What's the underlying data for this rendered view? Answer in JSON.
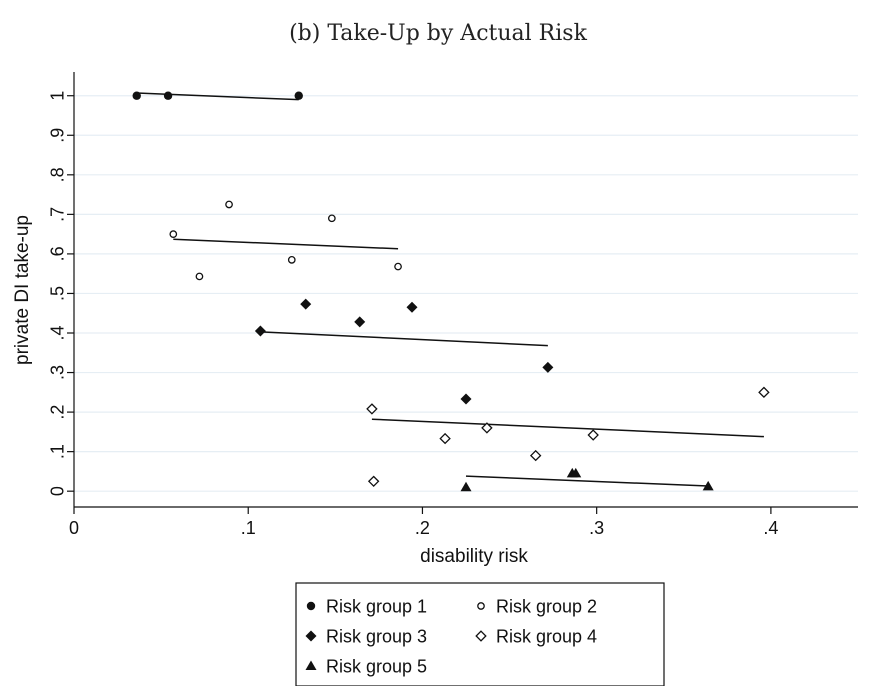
{
  "chart_data": {
    "type": "scatter",
    "title": "(b) Take-Up by Actual Risk",
    "xlabel": "disability risk",
    "ylabel": "private DI take-up",
    "xlim": [
      0,
      0.45
    ],
    "ylim": [
      -0.04,
      1.06
    ],
    "xticks": [
      0,
      0.1,
      0.2,
      0.3,
      0.4
    ],
    "xtick_labels": [
      "0",
      ".1",
      ".2",
      ".3",
      ".4"
    ],
    "yticks": [
      0,
      0.1,
      0.2,
      0.3,
      0.4,
      0.5,
      0.6,
      0.7,
      0.8,
      0.9,
      1.0
    ],
    "ytick_labels": [
      "0",
      ".1",
      ".2",
      ".3",
      ".4",
      ".5",
      ".6",
      ".7",
      ".8",
      ".9",
      "1"
    ],
    "grid": true,
    "legend_position": "bottom",
    "series": [
      {
        "name": "Risk group 1",
        "marker": "filled-circle",
        "points": [
          [
            0.036,
            1.0
          ],
          [
            0.054,
            1.0
          ],
          [
            0.129,
            1.0
          ]
        ],
        "fit": [
          [
            0.036,
            1.007
          ],
          [
            0.129,
            0.99
          ]
        ]
      },
      {
        "name": "Risk group 2",
        "marker": "hollow-circle",
        "points": [
          [
            0.057,
            0.65
          ],
          [
            0.072,
            0.543
          ],
          [
            0.089,
            0.725
          ],
          [
            0.125,
            0.585
          ],
          [
            0.148,
            0.69
          ],
          [
            0.186,
            0.568
          ]
        ],
        "fit": [
          [
            0.057,
            0.637
          ],
          [
            0.186,
            0.613
          ]
        ]
      },
      {
        "name": "Risk group 3",
        "marker": "filled-diamond",
        "points": [
          [
            0.107,
            0.405
          ],
          [
            0.133,
            0.473
          ],
          [
            0.164,
            0.428
          ],
          [
            0.194,
            0.465
          ],
          [
            0.225,
            0.233
          ],
          [
            0.272,
            0.313
          ]
        ],
        "fit": [
          [
            0.107,
            0.403
          ],
          [
            0.272,
            0.368
          ]
        ]
      },
      {
        "name": "Risk group 4",
        "marker": "hollow-diamond",
        "points": [
          [
            0.171,
            0.208
          ],
          [
            0.172,
            0.025
          ],
          [
            0.213,
            0.133
          ],
          [
            0.237,
            0.16
          ],
          [
            0.265,
            0.09
          ],
          [
            0.298,
            0.142
          ],
          [
            0.396,
            0.25
          ]
        ],
        "fit": [
          [
            0.171,
            0.182
          ],
          [
            0.396,
            0.138
          ]
        ]
      },
      {
        "name": "Risk group 5",
        "marker": "filled-triangle",
        "points": [
          [
            0.225,
            0.01
          ],
          [
            0.286,
            0.045
          ],
          [
            0.288,
            0.045
          ],
          [
            0.364,
            0.012
          ]
        ],
        "fit": [
          [
            0.225,
            0.038
          ],
          [
            0.364,
            0.013
          ]
        ]
      }
    ]
  }
}
